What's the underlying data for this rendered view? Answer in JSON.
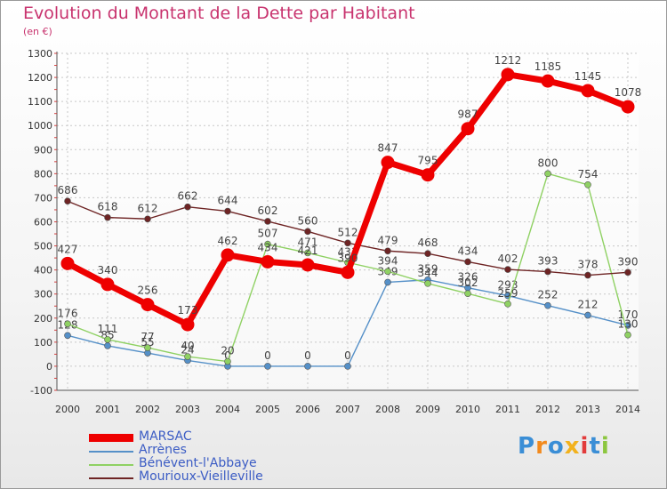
{
  "title": "Evolution du Montant de la Dette par Habitant",
  "subtitle": "(en €)",
  "logo": {
    "letters": [
      "P",
      "r",
      "o",
      "x",
      "i",
      "t",
      "i"
    ],
    "colors": [
      "#3a8ed6",
      "#f28a1e",
      "#3a8ed6",
      "#f2b21e",
      "#e23c3c",
      "#3a8ed6",
      "#8cc63f"
    ]
  },
  "chart_data": {
    "type": "line",
    "x": [
      "2000",
      "2001",
      "2002",
      "2003",
      "2004",
      "2005",
      "2006",
      "2007",
      "2008",
      "2009",
      "2010",
      "2011",
      "2012",
      "2013",
      "2014"
    ],
    "ylim": [
      -100,
      1300
    ],
    "yticks": [
      "-100",
      "0",
      "100",
      "200",
      "300",
      "400",
      "500",
      "600",
      "700",
      "800",
      "900",
      "1000",
      "1100",
      "1200",
      "1300"
    ],
    "grid": true,
    "legend_position": "bottom-left",
    "series": [
      {
        "name": "MARSAC",
        "color": "#ee0000",
        "thick": true,
        "values": [
          427,
          340,
          256,
          173,
          462,
          434,
          421,
          390,
          847,
          795,
          987,
          1212,
          1185,
          1145,
          1078
        ],
        "labels": [
          "427",
          "340",
          "256",
          "173",
          "462",
          "434",
          "421",
          "390",
          "847",
          "795",
          "987",
          "1212",
          "1185",
          "1145",
          "1078"
        ]
      },
      {
        "name": "Arrènes",
        "color": "#5590c8",
        "thick": false,
        "values": [
          128,
          85,
          55,
          24,
          0,
          0,
          0,
          0,
          349,
          359,
          326,
          293,
          252,
          212,
          170
        ],
        "labels": [
          "128",
          "85",
          "55",
          "24",
          "0",
          "0",
          "0",
          "0",
          "349",
          "359",
          "326",
          "293",
          "252",
          "212",
          "170"
        ]
      },
      {
        "name": "Bénévent-l'Abbaye",
        "color": "#8fd163",
        "thick": false,
        "values": [
          176,
          111,
          77,
          40,
          20,
          507,
          471,
          431,
          394,
          344,
          302,
          259,
          800,
          754,
          130
        ],
        "labels": [
          "176",
          "111",
          "77",
          "40",
          "20",
          "507",
          "471",
          "431",
          "394",
          "344",
          "302",
          "259",
          "800",
          "754",
          "130"
        ]
      },
      {
        "name": "Mourioux-Vieilleville",
        "color": "#6e2424",
        "thick": false,
        "values": [
          686,
          618,
          612,
          662,
          644,
          602,
          560,
          512,
          479,
          468,
          434,
          402,
          393,
          378,
          390
        ],
        "labels": [
          "686",
          "618",
          "612",
          "662",
          "644",
          "602",
          "560",
          "512",
          "479",
          "468",
          "434",
          "402",
          "393",
          "378",
          "390"
        ]
      }
    ]
  }
}
